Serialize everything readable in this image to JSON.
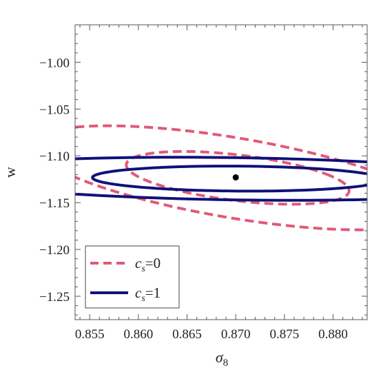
{
  "chart_data": {
    "type": "contour",
    "xlabel": "σ",
    "xlabel_sub": "8",
    "ylabel": "w",
    "xlim": [
      0.8535,
      0.8835
    ],
    "ylim": [
      -1.275,
      -0.96
    ],
    "xticks": [
      "0.855",
      "0.860",
      "0.865",
      "0.870",
      "0.875",
      "0.880"
    ],
    "yticks": [
      "−1.00",
      "−1.05",
      "−1.10",
      "−1.15",
      "−1.20",
      "−1.25"
    ],
    "fiducial_point": {
      "x": 0.87,
      "y": -1.123
    },
    "legend": {
      "placement": "bottom-left",
      "entries": [
        {
          "text": "c",
          "sub": "s",
          "rest": "=0"
        },
        {
          "text": "c",
          "sub": "s",
          "rest": "=1"
        }
      ]
    },
    "series": [
      {
        "id": "cs0",
        "color": "#e05a78",
        "style": "dashed",
        "ellipses": [
          {
            "cx": 0.8702,
            "cy": -1.1235,
            "a": 0.00977,
            "b": 0.0288,
            "angle": 12.7
          },
          {
            "cx": 0.8698,
            "cy": -1.1235,
            "a": 0.01569,
            "b": 0.0572,
            "angle": 14.2
          }
        ]
      },
      {
        "id": "cs1",
        "color": "#10107a",
        "style": "solid",
        "ellipses": [
          {
            "cx": 0.8702,
            "cy": -1.1243,
            "a": 0.01316,
            "b": 0.0151,
            "angle": 71.4
          },
          {
            "cx": 0.8699,
            "cy": -1.1245,
            "a": 0.022,
            "b": 0.0306,
            "angle": 71.6
          }
        ]
      }
    ]
  }
}
